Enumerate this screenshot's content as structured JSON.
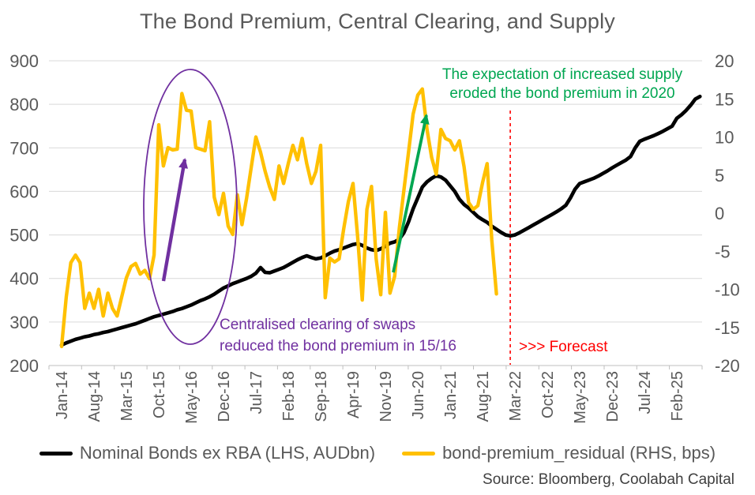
{
  "title": "The Bond Premium, Central Clearing, and Supply",
  "source": "Source: Bloomberg, Coolabah Capital",
  "annotations": {
    "green": {
      "line1": "The expectation of increased supply",
      "line2": "eroded the bond premium in 2020",
      "color": "#00A651"
    },
    "purple": {
      "line1": "Centralised clearing of swaps",
      "line2": "reduced the bond premium in 15/16",
      "color": "#7030A0"
    },
    "forecast": {
      "label": ">>> Forecast",
      "color": "#FF0000"
    }
  },
  "legend": [
    {
      "label": "Nominal Bonds ex RBA (LHS, AUDbn)",
      "color": "#000000"
    },
    {
      "label": "bond-premium_residual (RHS, bps)",
      "color": "#FFC000"
    }
  ],
  "chart_data": {
    "type": "line",
    "title": "The Bond Premium, Central Clearing, and Supply",
    "x_start_month": "Jan-14",
    "x_tick_labels": [
      "Jan-14",
      "Aug-14",
      "Mar-15",
      "Oct-15",
      "May-16",
      "Dec-16",
      "Jul-17",
      "Feb-18",
      "Sep-18",
      "Apr-19",
      "Nov-19",
      "Jun-20",
      "Jan-21",
      "Aug-21",
      "Mar-22",
      "Oct-22",
      "May-23",
      "Dec-23",
      "Jul-24",
      "Feb-25"
    ],
    "x_tick_interval_months": 7,
    "left_axis": {
      "label": "AUDbn",
      "range": [
        200,
        900
      ],
      "ticks": [
        900,
        800,
        700,
        600,
        500,
        400,
        300,
        200
      ]
    },
    "right_axis": {
      "label": "bps",
      "range": [
        -20,
        20
      ],
      "ticks": [
        20,
        15,
        10,
        5,
        0,
        -5,
        -10,
        -15,
        -20
      ]
    },
    "grid": true,
    "legend_position": "bottom",
    "forecast_divider_month_index": 97,
    "forecast_divider_label": ">>> Forecast",
    "series": [
      {
        "name": "Nominal Bonds ex RBA (LHS, AUDbn)",
        "axis": "left",
        "color": "#000000",
        "dom": "nominal-bonds-line",
        "start_month": "Jan-14",
        "end_month": "Jul-25",
        "values": [
          247,
          252,
          256,
          260,
          263,
          266,
          268,
          271,
          273,
          276,
          278,
          281,
          284,
          287,
          290,
          293,
          296,
          300,
          304,
          308,
          312,
          315,
          318,
          321,
          324,
          328,
          331,
          335,
          339,
          344,
          349,
          353,
          358,
          364,
          371,
          378,
          383,
          388,
          392,
          396,
          400,
          405,
          412,
          425,
          414,
          413,
          417,
          421,
          425,
          431,
          437,
          443,
          448,
          452,
          448,
          445,
          447,
          452,
          458,
          463,
          466,
          470,
          474,
          478,
          480,
          476,
          470,
          466,
          464,
          468,
          474,
          481,
          484,
          490,
          505,
          530,
          560,
          585,
          610,
          622,
          630,
          636,
          633,
          626,
          613,
          600,
          582,
          570,
          562,
          552,
          542,
          535,
          529,
          520,
          513,
          506,
          500,
          498,
          500,
          505,
          511,
          517,
          523,
          529,
          535,
          541,
          547,
          553,
          560,
          568,
          585,
          605,
          618,
          622,
          626,
          630,
          635,
          641,
          647,
          654,
          660,
          666,
          672,
          680,
          700,
          715,
          720,
          724,
          728,
          733,
          738,
          744,
          750,
          768,
          776,
          786,
          798,
          812,
          818
        ]
      },
      {
        "name": "bond-premium_residual (RHS, bps)",
        "axis": "right",
        "color": "#FFC000",
        "dom": "bond-premium-line",
        "start_month": "Jan-14",
        "end_month": "Nov-21",
        "values": [
          -17.5,
          -11,
          -6.5,
          -5.5,
          -6.5,
          -12.5,
          -10.5,
          -12.5,
          -10,
          -13.5,
          -10.5,
          -12.5,
          -13.5,
          -11,
          -8.5,
          -7,
          -6.6,
          -8,
          -7.5,
          -8.6,
          -5.5,
          11.6,
          6.2,
          8.6,
          8.3,
          8.4,
          15.7,
          13.5,
          13.4,
          8.6,
          8.4,
          8.2,
          12,
          2.1,
          -0.2,
          2.6,
          -1.7,
          -2.8,
          2.4,
          -1.5,
          2,
          6,
          10,
          8,
          5.5,
          3.4,
          1.8,
          6.2,
          3.9,
          6.5,
          8.9,
          7,
          9.8,
          6.5,
          3.9,
          5.5,
          8.9,
          -11.1,
          -5.9,
          -6.4,
          -6,
          -2,
          1.5,
          3.9,
          -3,
          -11.4,
          0.5,
          3.5,
          -6,
          -10.7,
          0.1,
          -10.5,
          -8.3,
          -2,
          3,
          8,
          13,
          15.5,
          16.3,
          11,
          7.3,
          5.1,
          11,
          9.8,
          9.5,
          8.3,
          9.5,
          6.1,
          1.4,
          0.5,
          1,
          4,
          6.5,
          -3.5,
          -10.6
        ]
      }
    ]
  }
}
